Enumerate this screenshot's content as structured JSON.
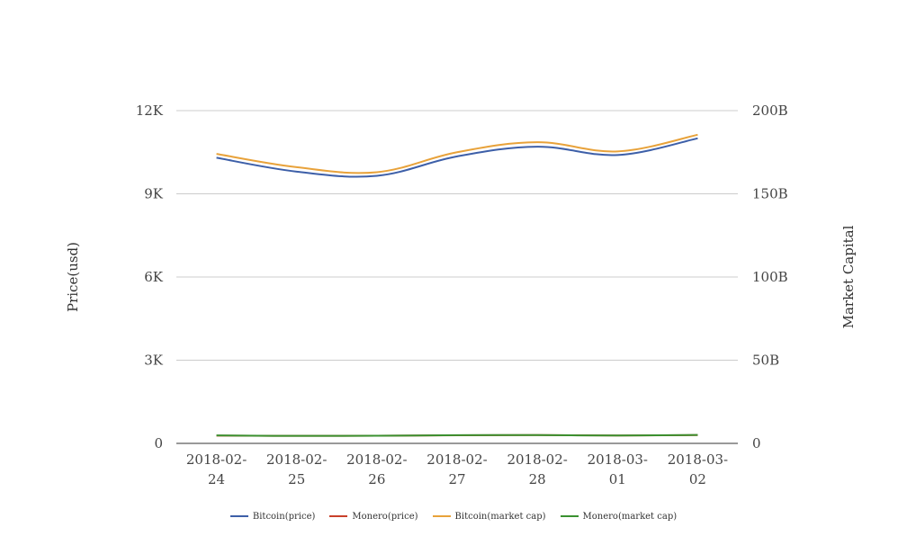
{
  "chart_data": {
    "type": "line",
    "categories": [
      [
        "2018-02-",
        "24"
      ],
      [
        "2018-02-",
        "25"
      ],
      [
        "2018-02-",
        "26"
      ],
      [
        "2018-02-",
        "27"
      ],
      [
        "2018-02-",
        "28"
      ],
      [
        "2018-03-",
        "01"
      ],
      [
        "2018-03-",
        "02"
      ]
    ],
    "ylabel_left": "Price(usd)",
    "ylabel_right": "Market Capital",
    "ylim_left": [
      0,
      12000
    ],
    "ylim_right": [
      0,
      200000000000
    ],
    "yticks_left": [
      "0",
      "3K",
      "6K",
      "9K",
      "12K"
    ],
    "yticks_right": [
      "0",
      "50B",
      "100B",
      "150B",
      "200B"
    ],
    "grid": true,
    "legend_position": "bottom",
    "series": [
      {
        "name": "Bitcoin(price)",
        "color": "#3d5fa8",
        "axis": "left",
        "values": [
          10300,
          9800,
          9650,
          10350,
          10700,
          10400,
          11000
        ]
      },
      {
        "name": "Monero(price)",
        "color": "#c9402a",
        "axis": "left",
        "values": [
          280,
          270,
          275,
          290,
          300,
          285,
          300
        ]
      },
      {
        "name": "Bitcoin(market cap)",
        "color": "#e8a23a",
        "axis": "right",
        "values": [
          174000000000,
          166000000000,
          163000000000,
          175000000000,
          181000000000,
          175500000000,
          185500000000
        ]
      },
      {
        "name": "Monero(market cap)",
        "color": "#3a9130",
        "axis": "right",
        "values": [
          4800000000,
          4500000000,
          4600000000,
          4900000000,
          5000000000,
          4700000000,
          5100000000
        ]
      }
    ]
  }
}
